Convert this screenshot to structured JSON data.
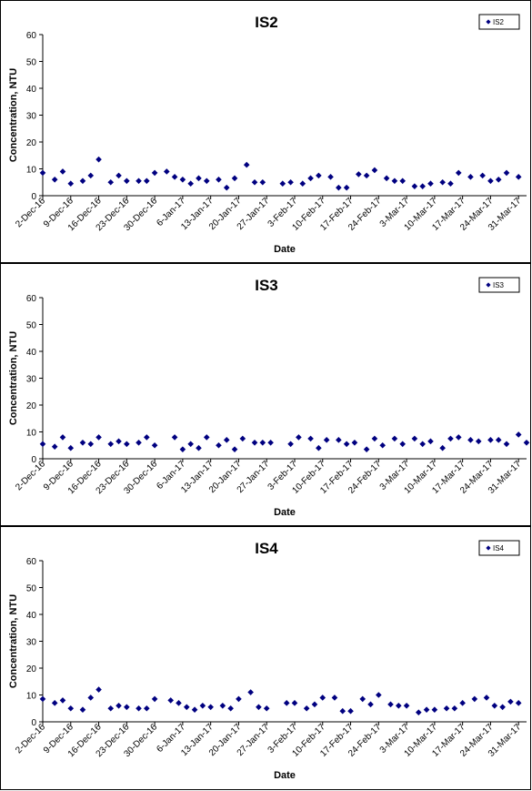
{
  "x_ticks": [
    "2-Dec-16",
    "9-Dec-16",
    "16-Dec-16",
    "23-Dec-16",
    "30-Dec-16",
    "6-Jan-17",
    "13-Jan-17",
    "20-Jan-17",
    "27-Jan-17",
    "3-Feb-17",
    "10-Feb-17",
    "17-Feb-17",
    "24-Feb-17",
    "3-Mar-17",
    "10-Mar-17",
    "17-Mar-17",
    "24-Mar-17",
    "31-Mar-17"
  ],
  "chart_data": [
    {
      "type": "scatter",
      "title": "IS2",
      "xlabel": "Date",
      "ylabel": "Concentration, NTU",
      "ylim": [
        0,
        60
      ],
      "y_ticks": [
        0,
        10,
        20,
        30,
        40,
        50,
        60
      ],
      "xlim": [
        "2016-12-02",
        "2017-04-02"
      ],
      "grid": false,
      "legend_position": "top-right",
      "marker_color": "#000080",
      "series": [
        {
          "name": "IS2",
          "points": [
            [
              "2016-12-02",
              8.5
            ],
            [
              "2016-12-05",
              6
            ],
            [
              "2016-12-07",
              9
            ],
            [
              "2016-12-09",
              4.5
            ],
            [
              "2016-12-12",
              5.5
            ],
            [
              "2016-12-14",
              7.5
            ],
            [
              "2016-12-16",
              13.5
            ],
            [
              "2016-12-19",
              5
            ],
            [
              "2016-12-21",
              7.5
            ],
            [
              "2016-12-23",
              5.5
            ],
            [
              "2016-12-26",
              5.5
            ],
            [
              "2016-12-28",
              5.5
            ],
            [
              "2016-12-30",
              8.5
            ],
            [
              "2017-01-02",
              9
            ],
            [
              "2017-01-04",
              7
            ],
            [
              "2017-01-06",
              6
            ],
            [
              "2017-01-08",
              4.5
            ],
            [
              "2017-01-10",
              6.5
            ],
            [
              "2017-01-12",
              5.5
            ],
            [
              "2017-01-15",
              6
            ],
            [
              "2017-01-17",
              3
            ],
            [
              "2017-01-19",
              6.5
            ],
            [
              "2017-01-22",
              11.5
            ],
            [
              "2017-01-24",
              5
            ],
            [
              "2017-01-26",
              5
            ],
            [
              "2017-01-31",
              4.5
            ],
            [
              "2017-02-02",
              5
            ],
            [
              "2017-02-05",
              4.5
            ],
            [
              "2017-02-07",
              6.5
            ],
            [
              "2017-02-09",
              7.5
            ],
            [
              "2017-02-12",
              7
            ],
            [
              "2017-02-14",
              3
            ],
            [
              "2017-02-16",
              3
            ],
            [
              "2017-02-19",
              8
            ],
            [
              "2017-02-21",
              7.5
            ],
            [
              "2017-02-23",
              9.5
            ],
            [
              "2017-02-26",
              6.5
            ],
            [
              "2017-02-28",
              5.5
            ],
            [
              "2017-03-02",
              5.5
            ],
            [
              "2017-03-05",
              3.5
            ],
            [
              "2017-03-07",
              3.5
            ],
            [
              "2017-03-09",
              4.5
            ],
            [
              "2017-03-12",
              5
            ],
            [
              "2017-03-14",
              4.5
            ],
            [
              "2017-03-16",
              8.5
            ],
            [
              "2017-03-19",
              7
            ],
            [
              "2017-03-22",
              7.5
            ],
            [
              "2017-03-24",
              5.5
            ],
            [
              "2017-03-26",
              6
            ],
            [
              "2017-03-28",
              8.5
            ],
            [
              "2017-03-31",
              7
            ]
          ]
        }
      ]
    },
    {
      "type": "scatter",
      "title": "IS3",
      "xlabel": "Date",
      "ylabel": "Concentration, NTU",
      "ylim": [
        0,
        60
      ],
      "y_ticks": [
        0,
        10,
        20,
        30,
        40,
        50,
        60
      ],
      "xlim": [
        "2016-12-02",
        "2017-04-02"
      ],
      "grid": false,
      "legend_position": "top-right",
      "marker_color": "#000080",
      "series": [
        {
          "name": "IS3",
          "points": [
            [
              "2016-12-02",
              5.5
            ],
            [
              "2016-12-05",
              4.5
            ],
            [
              "2016-12-07",
              8
            ],
            [
              "2016-12-09",
              4
            ],
            [
              "2016-12-12",
              6
            ],
            [
              "2016-12-14",
              5.5
            ],
            [
              "2016-12-16",
              8
            ],
            [
              "2016-12-19",
              5.5
            ],
            [
              "2016-12-21",
              6.5
            ],
            [
              "2016-12-23",
              5.5
            ],
            [
              "2016-12-26",
              6
            ],
            [
              "2016-12-28",
              8
            ],
            [
              "2016-12-30",
              5
            ],
            [
              "2017-01-04",
              8
            ],
            [
              "2017-01-06",
              3.5
            ],
            [
              "2017-01-08",
              5.5
            ],
            [
              "2017-01-10",
              4
            ],
            [
              "2017-01-12",
              8
            ],
            [
              "2017-01-15",
              5
            ],
            [
              "2017-01-17",
              7
            ],
            [
              "2017-01-19",
              3.5
            ],
            [
              "2017-01-21",
              7.5
            ],
            [
              "2017-01-24",
              6
            ],
            [
              "2017-01-26",
              6
            ],
            [
              "2017-01-28",
              6
            ],
            [
              "2017-02-02",
              5.5
            ],
            [
              "2017-02-04",
              8
            ],
            [
              "2017-02-07",
              7.5
            ],
            [
              "2017-02-09",
              4
            ],
            [
              "2017-02-11",
              7
            ],
            [
              "2017-02-14",
              7
            ],
            [
              "2017-02-16",
              5.5
            ],
            [
              "2017-02-18",
              6
            ],
            [
              "2017-02-21",
              3.5
            ],
            [
              "2017-02-23",
              7.5
            ],
            [
              "2017-02-25",
              5
            ],
            [
              "2017-02-28",
              7.5
            ],
            [
              "2017-03-02",
              5.5
            ],
            [
              "2017-03-05",
              7.5
            ],
            [
              "2017-03-07",
              5.5
            ],
            [
              "2017-03-09",
              6.5
            ],
            [
              "2017-03-12",
              4
            ],
            [
              "2017-03-14",
              7.5
            ],
            [
              "2017-03-16",
              8
            ],
            [
              "2017-03-19",
              7
            ],
            [
              "2017-03-21",
              6.5
            ],
            [
              "2017-03-24",
              7
            ],
            [
              "2017-03-26",
              7
            ],
            [
              "2017-03-28",
              5.5
            ],
            [
              "2017-03-31",
              9
            ],
            [
              "2017-04-02",
              6
            ]
          ]
        }
      ]
    },
    {
      "type": "scatter",
      "title": "IS4",
      "xlabel": "Date",
      "ylabel": "Concentration, NTU",
      "ylim": [
        0,
        60
      ],
      "y_ticks": [
        0,
        10,
        20,
        30,
        40,
        50,
        60
      ],
      "xlim": [
        "2016-12-02",
        "2017-04-02"
      ],
      "grid": false,
      "legend_position": "top-right",
      "marker_color": "#000080",
      "series": [
        {
          "name": "IS4",
          "points": [
            [
              "2016-12-02",
              8.5
            ],
            [
              "2016-12-05",
              7
            ],
            [
              "2016-12-07",
              8
            ],
            [
              "2016-12-09",
              5
            ],
            [
              "2016-12-12",
              4.5
            ],
            [
              "2016-12-14",
              9
            ],
            [
              "2016-12-16",
              12
            ],
            [
              "2016-12-19",
              5
            ],
            [
              "2016-12-21",
              6
            ],
            [
              "2016-12-23",
              5.5
            ],
            [
              "2016-12-26",
              5
            ],
            [
              "2016-12-28",
              5
            ],
            [
              "2016-12-30",
              8.5
            ],
            [
              "2017-01-03",
              8
            ],
            [
              "2017-01-05",
              7
            ],
            [
              "2017-01-07",
              5.5
            ],
            [
              "2017-01-09",
              4.5
            ],
            [
              "2017-01-11",
              6
            ],
            [
              "2017-01-13",
              5.5
            ],
            [
              "2017-01-16",
              6
            ],
            [
              "2017-01-18",
              5
            ],
            [
              "2017-01-20",
              8.5
            ],
            [
              "2017-01-23",
              11
            ],
            [
              "2017-01-25",
              5.5
            ],
            [
              "2017-01-27",
              5
            ],
            [
              "2017-02-01",
              7
            ],
            [
              "2017-02-03",
              7
            ],
            [
              "2017-02-06",
              5
            ],
            [
              "2017-02-08",
              6.5
            ],
            [
              "2017-02-10",
              9
            ],
            [
              "2017-02-13",
              9
            ],
            [
              "2017-02-15",
              4
            ],
            [
              "2017-02-17",
              4
            ],
            [
              "2017-02-20",
              8.5
            ],
            [
              "2017-02-22",
              6.5
            ],
            [
              "2017-02-24",
              10
            ],
            [
              "2017-02-27",
              6.5
            ],
            [
              "2017-03-01",
              6
            ],
            [
              "2017-03-03",
              6
            ],
            [
              "2017-03-06",
              3.5
            ],
            [
              "2017-03-08",
              4.5
            ],
            [
              "2017-03-10",
              4.5
            ],
            [
              "2017-03-13",
              5
            ],
            [
              "2017-03-15",
              5
            ],
            [
              "2017-03-17",
              7
            ],
            [
              "2017-03-20",
              8.5
            ],
            [
              "2017-03-23",
              9
            ],
            [
              "2017-03-25",
              6
            ],
            [
              "2017-03-27",
              5.5
            ],
            [
              "2017-03-29",
              7.5
            ],
            [
              "2017-03-31",
              7
            ]
          ]
        }
      ]
    }
  ]
}
